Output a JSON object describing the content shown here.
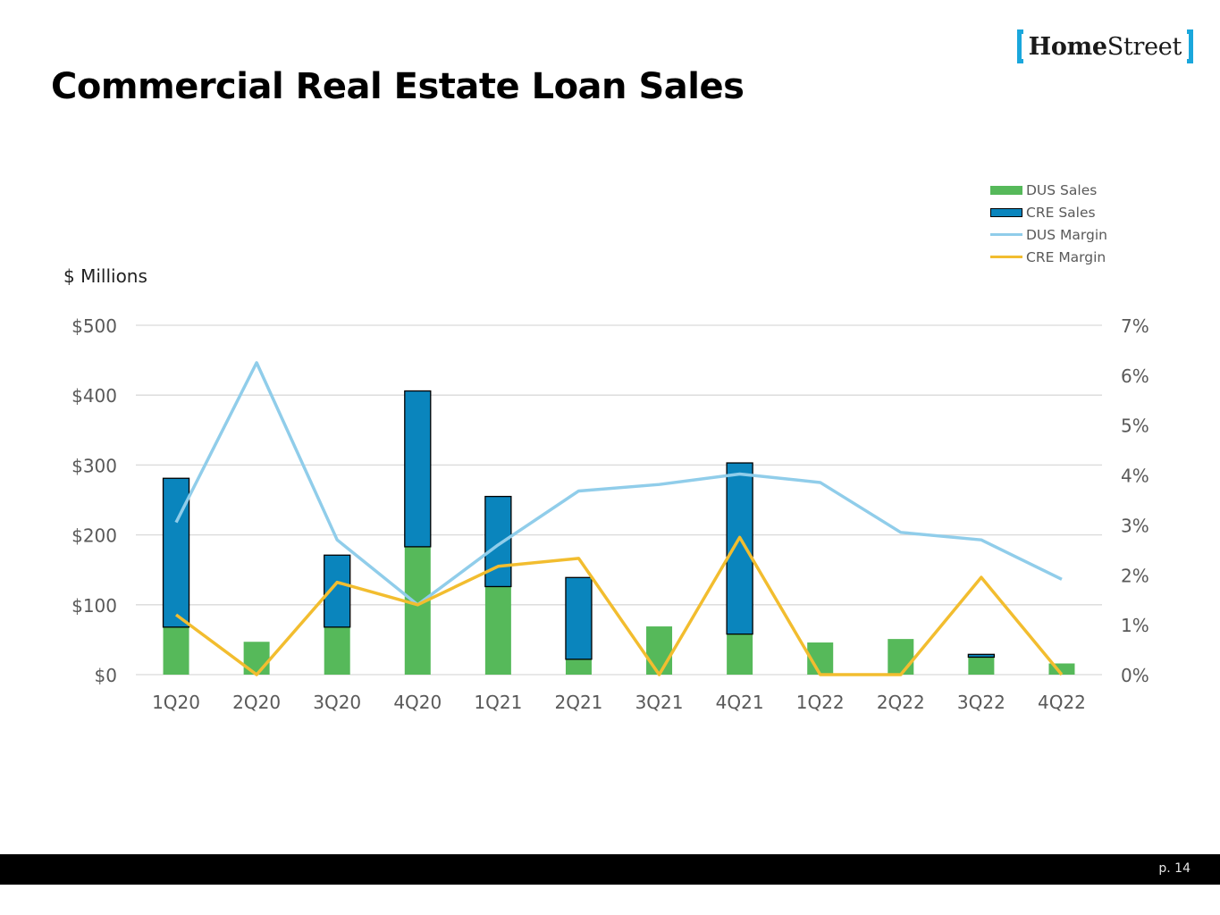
{
  "page": {
    "title": "Commercial Real Estate Loan Sales",
    "page_number": "p. 14",
    "logo": {
      "part1": "Home",
      "part2": "Street"
    }
  },
  "colors": {
    "dus_sales": "#56b95a",
    "cre_sales": "#0a85bd",
    "dus_margin": "#90cdea",
    "cre_margin": "#f2bd2f",
    "logo_bracket": "#1aa7dc",
    "gridline": "#d9d9d9",
    "axis_text": "#595959"
  },
  "chart_data": {
    "type": "bar",
    "stacked": true,
    "units_label": "$ Millions",
    "categories": [
      "1Q20",
      "2Q20",
      "3Q20",
      "4Q20",
      "1Q21",
      "2Q21",
      "3Q21",
      "4Q21",
      "1Q22",
      "2Q22",
      "3Q22",
      "4Q22"
    ],
    "series": [
      {
        "name": "DUS Sales",
        "kind": "bar",
        "axis": "left",
        "values": [
          68,
          47,
          68,
          183,
          126,
          22,
          69,
          58,
          46,
          51,
          25,
          16
        ]
      },
      {
        "name": "CRE Sales",
        "kind": "bar",
        "axis": "left",
        "values": [
          213,
          0,
          103,
          223,
          129,
          117,
          0,
          245,
          0,
          0,
          4,
          0
        ]
      },
      {
        "name": "DUS Margin",
        "kind": "line",
        "axis": "right",
        "values": [
          3.05,
          6.25,
          2.7,
          1.4,
          2.6,
          3.68,
          3.81,
          4.02,
          3.85,
          2.85,
          2.7,
          1.91
        ]
      },
      {
        "name": "CRE Margin",
        "kind": "line",
        "axis": "right",
        "values": [
          1.2,
          0.0,
          1.85,
          1.4,
          2.17,
          2.33,
          0.0,
          2.75,
          0.0,
          0.0,
          1.95,
          0.0
        ]
      }
    ],
    "left_axis": {
      "ylim": [
        0,
        500
      ],
      "ticks": [
        0,
        100,
        200,
        300,
        400,
        500
      ],
      "tick_labels": [
        "$0",
        "$100",
        "$200",
        "$300",
        "$400",
        "$500"
      ]
    },
    "right_axis": {
      "ylim": [
        0,
        7
      ],
      "ticks": [
        0,
        1,
        2,
        3,
        4,
        5,
        6,
        7
      ],
      "tick_labels": [
        "0%",
        "1%",
        "2%",
        "3%",
        "4%",
        "5%",
        "6%",
        "7%"
      ]
    },
    "grid": true,
    "legend_position": "top-right"
  }
}
